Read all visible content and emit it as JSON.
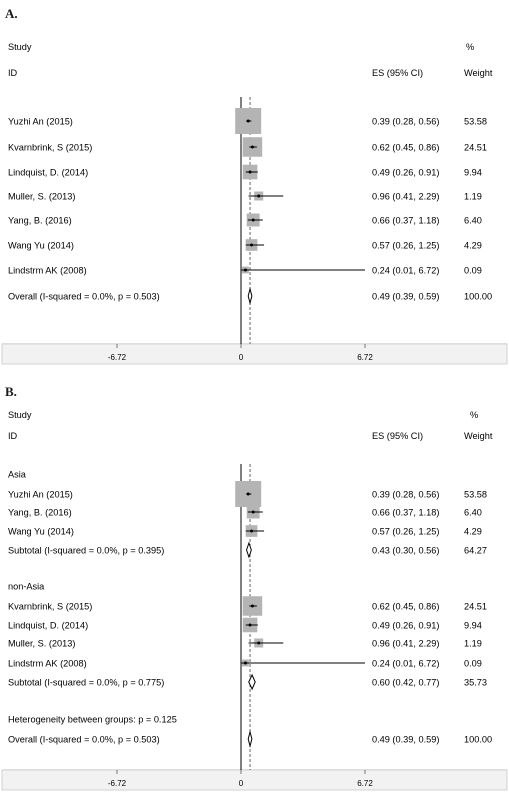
{
  "chart_data": [
    {
      "type": "forest",
      "panel_label": "A.",
      "header": {
        "col_study_1": "Study",
        "col_study_2": "ID",
        "col_es": "ES (95% CI)",
        "col_weight_1": "%",
        "col_weight_2": "Weight"
      },
      "xaxis": {
        "ticks": [
          "-6.72",
          "0",
          "6.72"
        ],
        "range": [
          -6.72,
          6.72
        ],
        "null_line": 0,
        "pooled_line": 0.49
      },
      "rows": [
        {
          "kind": "study",
          "label": "Yuzhi An (2015)",
          "es": 0.39,
          "lo": 0.28,
          "hi": 0.56,
          "weight": 53.58,
          "ci_text": "0.39 (0.28, 0.56)",
          "weight_text": "53.58"
        },
        {
          "kind": "study",
          "label": "Kvarnbrink, S (2015)",
          "es": 0.62,
          "lo": 0.45,
          "hi": 0.86,
          "weight": 24.51,
          "ci_text": "0.62 (0.45, 0.86)",
          "weight_text": "24.51"
        },
        {
          "kind": "study",
          "label": "Lindquist, D. (2014)",
          "es": 0.49,
          "lo": 0.26,
          "hi": 0.91,
          "weight": 9.94,
          "ci_text": "0.49 (0.26, 0.91)",
          "weight_text": "9.94"
        },
        {
          "kind": "study",
          "label": "Muller, S. (2013)",
          "es": 0.96,
          "lo": 0.41,
          "hi": 2.29,
          "weight": 1.19,
          "ci_text": "0.96 (0.41, 2.29)",
          "weight_text": "1.19"
        },
        {
          "kind": "study",
          "label": "Yang, B. (2016)",
          "es": 0.66,
          "lo": 0.37,
          "hi": 1.18,
          "weight": 6.4,
          "ci_text": "0.66 (0.37, 1.18)",
          "weight_text": "6.40"
        },
        {
          "kind": "study",
          "label": "Wang Yu (2014)",
          "es": 0.57,
          "lo": 0.26,
          "hi": 1.25,
          "weight": 4.29,
          "ci_text": "0.57 (0.26, 1.25)",
          "weight_text": "4.29"
        },
        {
          "kind": "study",
          "label": "Lindstrm AK (2008)",
          "es": 0.24,
          "lo": 0.01,
          "hi": 6.72,
          "weight": 0.09,
          "ci_text": "0.24 (0.01, 6.72)",
          "weight_text": "0.09"
        },
        {
          "kind": "pooled",
          "label": "Overall  (I-squared = 0.0%, p = 0.503)",
          "es": 0.49,
          "lo": 0.39,
          "hi": 0.59,
          "ci_text": "0.49 (0.39, 0.59)",
          "weight_text": "100.00"
        }
      ]
    },
    {
      "type": "forest",
      "panel_label": "B.",
      "header": {
        "col_study_1": "Study",
        "col_study_2": "ID",
        "col_es": "ES (95% CI)",
        "col_weight_1": "%",
        "col_weight_2": "Weight"
      },
      "xaxis": {
        "ticks": [
          "-6.72",
          "0",
          "6.72"
        ],
        "range": [
          -6.72,
          6.72
        ],
        "null_line": 0,
        "pooled_line": 0.49
      },
      "rows": [
        {
          "kind": "group",
          "label": "Asia"
        },
        {
          "kind": "study",
          "label": "Yuzhi An (2015)",
          "es": 0.39,
          "lo": 0.28,
          "hi": 0.56,
          "weight": 53.58,
          "ci_text": "0.39 (0.28, 0.56)",
          "weight_text": "53.58"
        },
        {
          "kind": "study",
          "label": "Yang, B. (2016)",
          "es": 0.66,
          "lo": 0.37,
          "hi": 1.18,
          "weight": 6.4,
          "ci_text": "0.66 (0.37, 1.18)",
          "weight_text": "6.40"
        },
        {
          "kind": "study",
          "label": "Wang Yu (2014)",
          "es": 0.57,
          "lo": 0.26,
          "hi": 1.25,
          "weight": 4.29,
          "ci_text": "0.57 (0.26, 1.25)",
          "weight_text": "4.29"
        },
        {
          "kind": "pooled",
          "label": "Subtotal  (I-squared = 0.0%, p = 0.395)",
          "es": 0.43,
          "lo": 0.3,
          "hi": 0.56,
          "ci_text": "0.43 (0.30, 0.56)",
          "weight_text": "64.27"
        },
        {
          "kind": "blank"
        },
        {
          "kind": "group",
          "label": "non-Asia"
        },
        {
          "kind": "study",
          "label": "Kvarnbrink, S (2015)",
          "es": 0.62,
          "lo": 0.45,
          "hi": 0.86,
          "weight": 24.51,
          "ci_text": "0.62 (0.45, 0.86)",
          "weight_text": "24.51"
        },
        {
          "kind": "study",
          "label": "Lindquist, D. (2014)",
          "es": 0.49,
          "lo": 0.26,
          "hi": 0.91,
          "weight": 9.94,
          "ci_text": "0.49 (0.26, 0.91)",
          "weight_text": "9.94"
        },
        {
          "kind": "study",
          "label": "Muller, S. (2013)",
          "es": 0.96,
          "lo": 0.41,
          "hi": 2.29,
          "weight": 1.19,
          "ci_text": "0.96 (0.41, 2.29)",
          "weight_text": "1.19"
        },
        {
          "kind": "study",
          "label": "Lindstrm AK (2008)",
          "es": 0.24,
          "lo": 0.01,
          "hi": 6.72,
          "weight": 0.09,
          "ci_text": "0.24 (0.01, 6.72)",
          "weight_text": "0.09"
        },
        {
          "kind": "pooled",
          "label": "Subtotal  (I-squared = 0.0%, p = 0.775)",
          "es": 0.6,
          "lo": 0.42,
          "hi": 0.77,
          "ci_text": "0.60 (0.42, 0.77)",
          "weight_text": "35.73"
        },
        {
          "kind": "blank"
        },
        {
          "kind": "note",
          "label": "Heterogeneity between groups: p = 0.125"
        },
        {
          "kind": "pooled",
          "label": "Overall  (I-squared = 0.0%, p = 0.503)",
          "es": 0.49,
          "lo": 0.39,
          "hi": 0.59,
          "ci_text": "0.49 (0.39, 0.59)",
          "weight_text": "100.00"
        }
      ]
    }
  ]
}
